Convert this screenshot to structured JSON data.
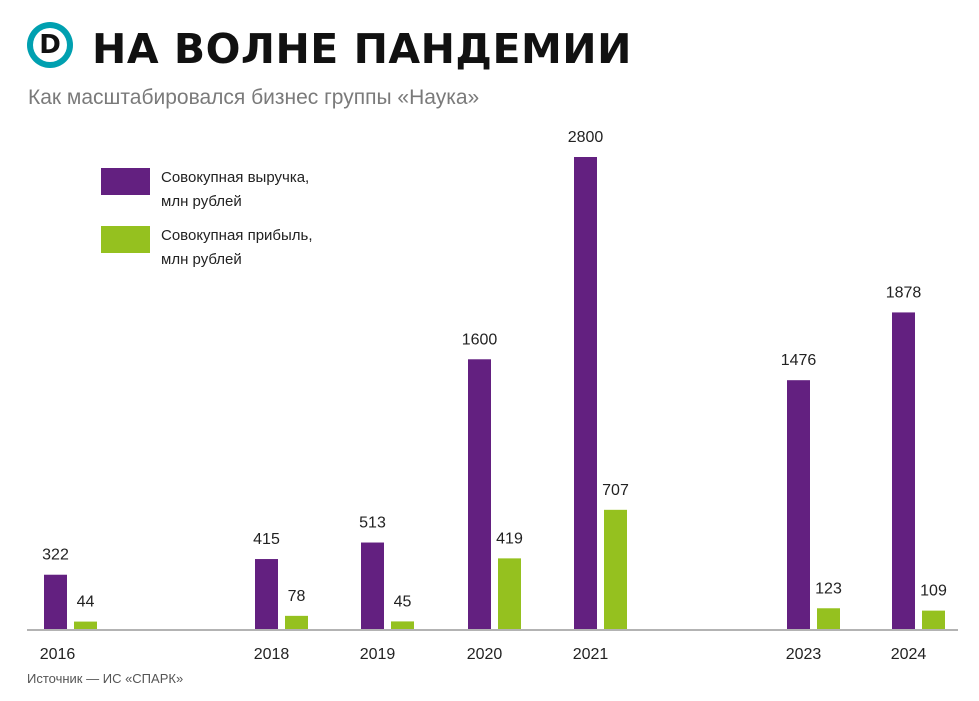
{
  "logo": {
    "letter": "D",
    "color": "#00a0b0"
  },
  "title": "НА ВОЛНЕ ПАНДЕМИИ",
  "subtitle": "Как масштабировался бизнес группы «Наука»",
  "source": "Источник — ИС «СПАРК»",
  "chart_data": {
    "type": "bar",
    "categories": [
      "2016",
      "2018",
      "2019",
      "2020",
      "2021",
      "2023",
      "2024"
    ],
    "series": [
      {
        "name": "Совокупная выручка, млн рублей",
        "name_lines": [
          "Совокупная выручка,",
          "млн рублей"
        ],
        "color": "#632080",
        "values": [
          322,
          415,
          513,
          1600,
          2800,
          1476,
          1878
        ]
      },
      {
        "name": "Совокупная прибыль, млн рублей",
        "name_lines": [
          "Совокупная прибыль,",
          "млн рублей"
        ],
        "color": "#95c11f",
        "values": [
          44,
          78,
          45,
          419,
          707,
          123,
          109
        ]
      }
    ],
    "ylim": [
      0,
      2800
    ],
    "legend": "top-left",
    "grid": false,
    "axis_color": "#9a9a9a"
  }
}
